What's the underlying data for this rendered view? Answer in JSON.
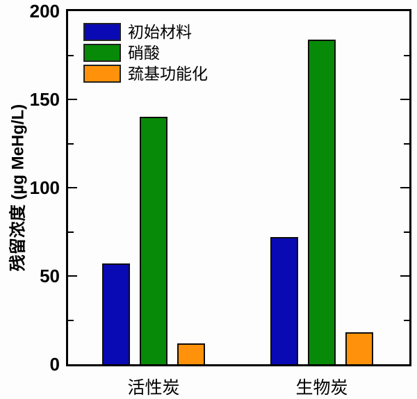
{
  "figure": {
    "background": "#fdfdfd",
    "frame_color": "#000000"
  },
  "chart_data": {
    "type": "bar",
    "title": "",
    "categories": [
      "活性炭",
      "生物炭"
    ],
    "series": [
      {
        "name": "初始材料",
        "color": "#0a0ab4",
        "values": [
          57,
          72
        ]
      },
      {
        "name": "硝酸",
        "color": "#078a07",
        "values": [
          140,
          184
        ]
      },
      {
        "name": "巯基功能化",
        "color": "#ff920a",
        "values": [
          12,
          18
        ]
      }
    ],
    "xlabel": "",
    "ylabel": "残留浓度 (µg MeHg/L)",
    "ylim": [
      0,
      200
    ],
    "y_major_ticks": [
      0,
      50,
      100,
      150,
      200
    ],
    "y_minor_step": 25,
    "grid": false,
    "legend_position": "top-left",
    "bar_outline_color": "#0d0d0d"
  }
}
